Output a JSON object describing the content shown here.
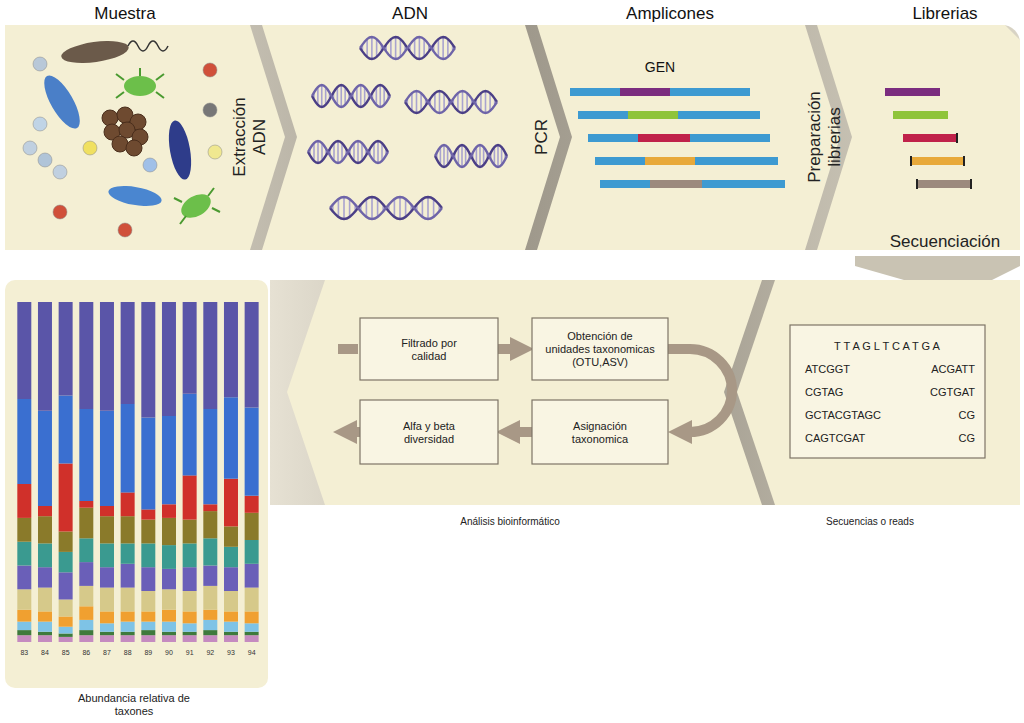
{
  "header": {
    "columns": [
      "Muestra",
      "ADN",
      "Amplicones",
      "Librerias"
    ]
  },
  "steps": {
    "extraction": [
      "Extracción",
      "ADN"
    ],
    "pcr": [
      "PCR"
    ],
    "library_prep": [
      "Preparación",
      "librerias"
    ],
    "sequencing": [
      "Secuenciación"
    ]
  },
  "amplicons": {
    "label": "GEN"
  },
  "sequences": {
    "header": "T T A G L T C A T G A",
    "rows": [
      [
        "ATCGGT",
        "ACGATT"
      ],
      [
        "CGTAG",
        "CGTGAT"
      ],
      [
        "GCTACGTAGC",
        "CG"
      ],
      [
        "CAGTCGAT",
        "CG"
      ]
    ],
    "caption": "Secuencias o reads"
  },
  "pipeline": {
    "boxes": {
      "quality": [
        "Filtrado por",
        "calidad"
      ],
      "otu": [
        "Obtención de",
        "unidades taxonomicas",
        "(OTU,ASV)"
      ],
      "taxonomy": [
        "Asignación",
        "taxonomica"
      ],
      "diversity": [
        "Alfa y beta",
        "diversidad"
      ]
    },
    "caption": "Análisis bioinformático"
  },
  "chart_data": {
    "type": "bar",
    "stacked": true,
    "tick_labels": "x",
    "xlabel": "Abundancia relativa de taxones",
    "categories": [
      "83",
      "84",
      "85",
      "86",
      "87",
      "88",
      "89",
      "90",
      "91",
      "92",
      "93",
      "94"
    ],
    "ylim": [
      0,
      100
    ],
    "series": [
      {
        "color": "#c58bc0",
        "values": [
          2,
          2,
          1.5,
          2,
          2,
          2,
          2,
          2,
          2,
          2,
          2,
          2
        ]
      },
      {
        "color": "#3e7a3c",
        "values": [
          1.5,
          1,
          1,
          1.5,
          1,
          1,
          1.5,
          1,
          1,
          1.5,
          1,
          1
        ]
      },
      {
        "color": "#7ec3e6",
        "values": [
          2.5,
          3,
          2,
          3,
          2.5,
          3,
          2.5,
          3,
          2.5,
          3,
          3,
          2.5
        ]
      },
      {
        "color": "#f0a030",
        "values": [
          3.5,
          3,
          3,
          4,
          3.5,
          3,
          3,
          3.5,
          3.5,
          3,
          3,
          3.5
        ]
      },
      {
        "color": "#d6c98a",
        "values": [
          6,
          7,
          5,
          6,
          7,
          7,
          6,
          6,
          6,
          7,
          6,
          7
        ]
      },
      {
        "color": "#6a5fb8",
        "values": [
          7,
          6,
          8,
          7,
          6,
          7,
          7,
          6,
          7,
          6,
          7,
          7
        ]
      },
      {
        "color": "#3a9a90",
        "values": [
          7,
          7,
          6,
          7,
          7,
          6,
          7,
          7,
          7,
          8,
          6,
          7
        ]
      },
      {
        "color": "#8a7a2a",
        "values": [
          7,
          8,
          6,
          9,
          8,
          8,
          7,
          8,
          7,
          8,
          6,
          8
        ]
      },
      {
        "color": "#d0302a",
        "values": [
          10,
          3,
          20,
          2,
          3,
          7,
          3,
          4,
          13,
          2,
          14,
          5
        ]
      },
      {
        "color": "#3a6fd0",
        "values": [
          25,
          28,
          20,
          27,
          28,
          26,
          27,
          26,
          24,
          28,
          24,
          26
        ]
      },
      {
        "color": "#5a55a8",
        "values": [
          28.5,
          32,
          27.5,
          31.5,
          32,
          30,
          34,
          33.5,
          27,
          31.5,
          28,
          31
        ]
      }
    ]
  }
}
